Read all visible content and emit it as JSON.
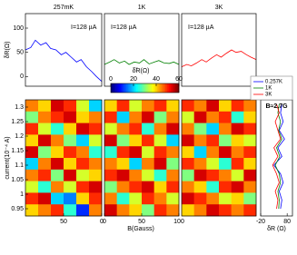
{
  "chart_data": [
    {
      "type": "line",
      "title": "257mK",
      "annotation": "I=128 µA",
      "y_label": "δR(Ω)",
      "xlim": [
        100,
        0
      ],
      "ylim": [
        -20,
        130
      ],
      "yticks": [
        100,
        50,
        0
      ],
      "x": [
        100,
        93,
        87,
        80,
        73,
        67,
        60,
        53,
        47,
        40,
        33,
        27,
        20,
        13,
        7,
        0
      ],
      "series": [
        {
          "color": "#0000ff",
          "values": [
            55,
            60,
            75,
            65,
            70,
            58,
            55,
            45,
            50,
            40,
            30,
            35,
            20,
            10,
            0,
            -10
          ]
        }
      ]
    },
    {
      "type": "line",
      "title": "1K",
      "annotation": "I=128 µA",
      "xlim": [
        0,
        100
      ],
      "ylim": [
        -20,
        130
      ],
      "x": [
        0,
        7,
        13,
        20,
        27,
        33,
        40,
        47,
        53,
        60,
        67,
        73,
        80,
        87,
        93,
        100
      ],
      "series": [
        {
          "color": "#008000",
          "values": [
            25,
            30,
            35,
            28,
            32,
            25,
            30,
            28,
            35,
            26,
            30,
            33,
            28,
            27,
            30,
            25
          ]
        }
      ]
    },
    {
      "type": "line",
      "title": "3K",
      "annotation": "I=128 µA",
      "xlim": [
        0,
        100
      ],
      "ylim": [
        -20,
        130
      ],
      "x": [
        0,
        7,
        13,
        20,
        27,
        33,
        40,
        47,
        53,
        60,
        67,
        73,
        80,
        87,
        93,
        100
      ],
      "series": [
        {
          "color": "#ff0000",
          "values": [
            20,
            25,
            22,
            28,
            35,
            30,
            38,
            45,
            40,
            48,
            55,
            50,
            52,
            45,
            40,
            35
          ]
        }
      ]
    },
    {
      "type": "heatmap",
      "y_label": "current(10⁻⁴ A)",
      "xlim": [
        100,
        0
      ],
      "xticks": [
        50,
        0
      ],
      "ylim": [
        0.925,
        1.325
      ],
      "yticks": [
        1.3,
        1.25,
        1.2,
        1.15,
        1.1,
        1.05,
        1,
        0.95
      ],
      "clim": [
        0,
        60
      ],
      "values": [
        [
          45,
          40,
          55,
          50,
          35,
          20
        ],
        [
          30,
          45,
          50,
          55,
          40,
          45
        ],
        [
          50,
          35,
          25,
          40,
          55,
          50
        ],
        [
          40,
          55,
          45,
          30,
          20,
          35
        ],
        [
          55,
          30,
          40,
          50,
          45,
          25
        ],
        [
          20,
          45,
          55,
          40,
          50,
          45
        ],
        [
          45,
          50,
          30,
          55,
          35,
          40
        ],
        [
          35,
          25,
          45,
          35,
          50,
          55
        ],
        [
          50,
          55,
          20,
          15,
          40,
          50
        ],
        [
          40,
          45,
          50,
          25,
          10,
          45
        ]
      ]
    },
    {
      "type": "heatmap",
      "x_label": "B(Gauss)",
      "colorbar_label": "δ̃R(Ω)",
      "xlim": [
        0,
        100
      ],
      "xticks": [
        0,
        50,
        100
      ],
      "ylim": [
        0.925,
        1.325
      ],
      "clim": [
        0,
        60
      ],
      "cticks": [
        0,
        20,
        40,
        60
      ],
      "values": [
        [
          40,
          50,
          35,
          45,
          50,
          40
        ],
        [
          50,
          20,
          45,
          55,
          30,
          45
        ],
        [
          35,
          45,
          50,
          25,
          45,
          55
        ],
        [
          55,
          30,
          40,
          50,
          35,
          20
        ],
        [
          25,
          50,
          55,
          35,
          50,
          45
        ],
        [
          45,
          40,
          20,
          45,
          55,
          30
        ],
        [
          50,
          55,
          45,
          35,
          25,
          45
        ],
        [
          30,
          45,
          50,
          55,
          40,
          50
        ],
        [
          45,
          25,
          35,
          50,
          45,
          35
        ],
        [
          55,
          45,
          40,
          30,
          50,
          45
        ]
      ]
    },
    {
      "type": "heatmap",
      "xlim": [
        0,
        100
      ],
      "ylim": [
        0.925,
        1.325
      ],
      "clim": [
        0,
        60
      ],
      "values": [
        [
          50,
          45,
          55,
          40,
          50,
          45
        ],
        [
          35,
          55,
          45,
          50,
          25,
          40
        ],
        [
          45,
          30,
          20,
          45,
          55,
          50
        ],
        [
          55,
          45,
          50,
          30,
          40,
          35
        ],
        [
          40,
          20,
          45,
          55,
          45,
          50
        ],
        [
          50,
          45,
          35,
          25,
          50,
          40
        ],
        [
          30,
          55,
          50,
          45,
          35,
          55
        ],
        [
          45,
          40,
          25,
          50,
          55,
          45
        ],
        [
          55,
          50,
          45,
          35,
          40,
          30
        ],
        [
          40,
          45,
          55,
          50,
          45,
          50
        ]
      ]
    },
    {
      "type": "line",
      "orientation": "vertical",
      "annotation": "B≈2.7G",
      "x_label": "δR (Ω)",
      "xlim": [
        -20,
        100
      ],
      "xticks": [
        -20,
        80
      ],
      "ylim": [
        0.925,
        1.325
      ],
      "y": [
        1.31,
        1.28,
        1.25,
        1.22,
        1.19,
        1.16,
        1.13,
        1.1,
        1.07,
        1.04,
        1.01,
        0.98,
        0.95
      ],
      "legend": "top",
      "series": [
        {
          "name": "0.257K",
          "color": "#0000ff",
          "values": [
            60,
            55,
            65,
            50,
            70,
            45,
            60,
            30,
            55,
            65,
            50,
            60,
            55
          ]
        },
        {
          "name": "1K",
          "color": "#008000",
          "values": [
            50,
            45,
            55,
            48,
            60,
            40,
            52,
            35,
            50,
            55,
            45,
            50,
            48
          ]
        },
        {
          "name": "3K",
          "color": "#ff0000",
          "values": [
            40,
            50,
            35,
            45,
            55,
            30,
            45,
            25,
            40,
            50,
            35,
            45,
            40
          ]
        }
      ]
    }
  ]
}
